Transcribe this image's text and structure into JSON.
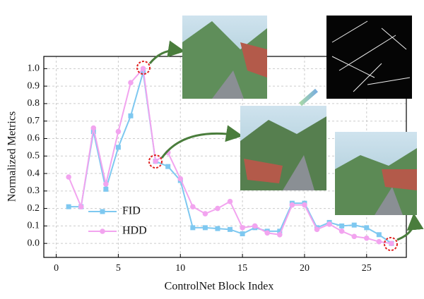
{
  "chart_data": {
    "type": "line",
    "xlabel": "ControlNet Block Index",
    "ylabel": "Normalized Metrics",
    "x": [
      1,
      2,
      3,
      4,
      5,
      6,
      7,
      8,
      9,
      10,
      11,
      12,
      13,
      14,
      15,
      16,
      17,
      18,
      19,
      20,
      21,
      22,
      23,
      24,
      25,
      26,
      27
    ],
    "series": [
      {
        "name": "FID",
        "color": "#7ec8f0",
        "marker": "square",
        "values": [
          0.21,
          0.21,
          0.64,
          0.31,
          0.55,
          0.73,
          0.98,
          0.47,
          0.44,
          0.36,
          0.09,
          0.09,
          0.085,
          0.08,
          0.055,
          0.09,
          0.07,
          0.07,
          0.23,
          0.23,
          0.09,
          0.12,
          0.1,
          0.105,
          0.09,
          0.05,
          0.0
        ]
      },
      {
        "name": "HDD",
        "color": "#f2a4ef",
        "marker": "circle",
        "values": [
          0.38,
          0.21,
          0.66,
          0.34,
          0.64,
          0.92,
          1.0,
          0.47,
          0.52,
          0.37,
          0.21,
          0.17,
          0.2,
          0.24,
          0.09,
          0.1,
          0.06,
          0.05,
          0.22,
          0.22,
          0.08,
          0.11,
          0.07,
          0.04,
          0.03,
          0.01,
          0.0
        ]
      }
    ],
    "xlim": [
      -1,
      28.2
    ],
    "xticks": [
      0,
      5,
      10,
      15,
      20,
      25
    ],
    "ylim": [
      -0.08,
      1.07
    ],
    "yticks": [
      {
        "value": 0,
        "label": "0.0"
      },
      0.1,
      0.2,
      0.3,
      0.4,
      0.5,
      0.6,
      0.7,
      0.8,
      0.9,
      {
        "value": 1,
        "label": "1.0"
      }
    ],
    "grid": true,
    "legend": "lower-left"
  }
}
